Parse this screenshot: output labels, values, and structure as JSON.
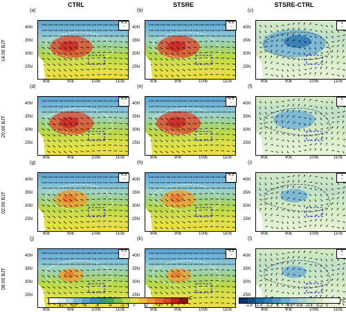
{
  "columns": [
    {
      "title": "CTRL",
      "labels": [
        "(a)",
        "(d)",
        "(g)",
        "(j)"
      ],
      "ref": "4.5"
    },
    {
      "title": "STSRE",
      "labels": [
        "(b)",
        "(e)",
        "(h)",
        "(k)"
      ],
      "ref": "4.5"
    },
    {
      "title": "STSRE-CTRL",
      "labels": [
        "(c)",
        "(f)",
        "(i)",
        "(l)"
      ],
      "ref": "1"
    }
  ],
  "rows": [
    "14:00 BJT",
    "20:00 BJT",
    "02:00 BJT",
    "08:00 BJT"
  ],
  "x_ticks": [
    "80E",
    "90E",
    "100E",
    "110E"
  ],
  "y_ticks": [
    "40N",
    "35N",
    "30N",
    "25N"
  ],
  "colorbar_left": {
    "ticks": [
      "-12",
      "-10",
      "-8",
      "-6",
      "-4",
      "-2",
      "0",
      "2",
      "4",
      "6"
    ],
    "unit": "C",
    "colors": [
      "#ffffff",
      "#d6edf5",
      "#aad6ea",
      "#7bbcdd",
      "#5aa3cf",
      "#3f8fc4",
      "#2e9b8a",
      "#3aa85e",
      "#7cc14c",
      "#b9d848",
      "#eee03b",
      "#f6c032",
      "#f39a2c",
      "#ec6c28",
      "#e0422a",
      "#c41f1f",
      "#8f0e0e"
    ]
  },
  "colorbar_right": {
    "ticks": [
      "-1.6",
      "-1.4",
      "-1.2",
      "-1",
      "-0.8",
      "-0.6",
      "-0.4",
      "-0.2",
      "0"
    ],
    "unit": "°C",
    "colors": [
      "#08306b",
      "#0f4c8a",
      "#1f6aa5",
      "#3182bd",
      "#4a98c9",
      "#6baed6",
      "#8fc3dd",
      "#a8d3d2",
      "#bfe0c8",
      "#d5ebc5",
      "#e8f4d9",
      "#f7fbef"
    ]
  }
}
